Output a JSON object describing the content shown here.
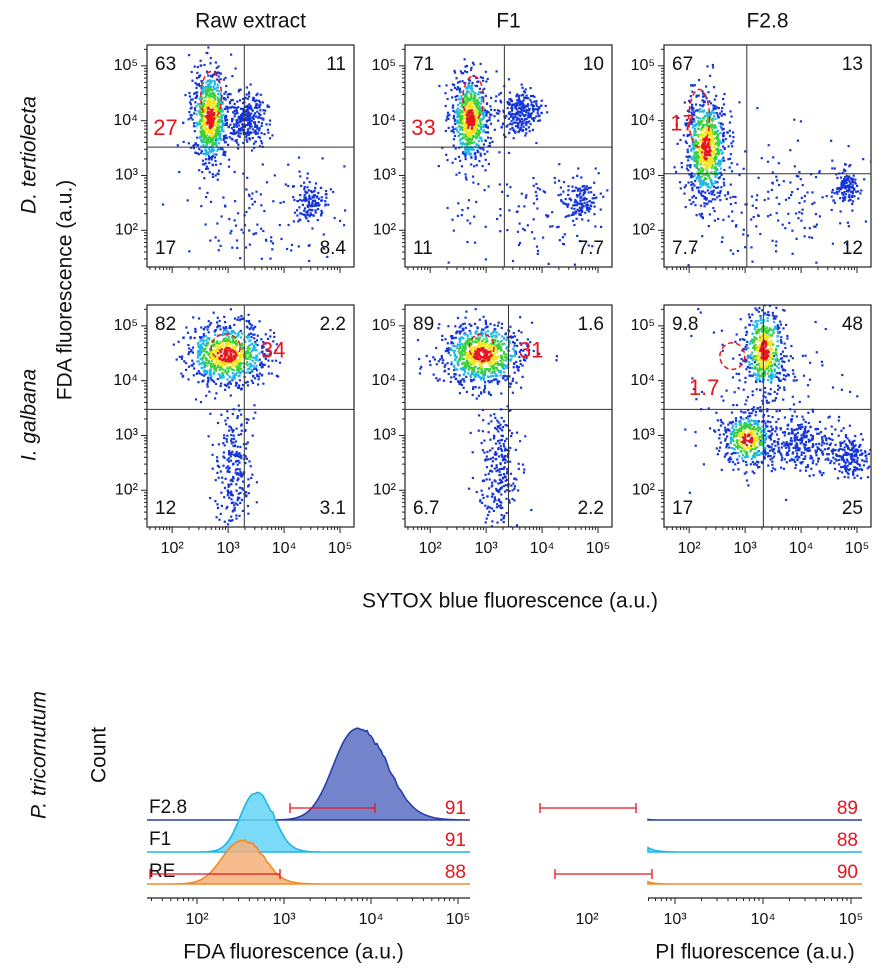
{
  "column_titles": [
    "Raw extract",
    "F1",
    "F2.8"
  ],
  "row_labels": [
    "D. tertiolecta",
    "I. galbana"
  ],
  "scatter_y_label": "FDA fluorescence (a.u.)",
  "scatter_x_label": "SYTOX blue fluorescence (a.u.)",
  "scatter_x_ticks": [
    "10²",
    "10³",
    "10⁴",
    "10⁵"
  ],
  "scatter_y_ticks": [
    "10²",
    "10³",
    "10⁴",
    "10⁵"
  ],
  "panels": [
    [
      {
        "upper_left": "63",
        "upper_right": "11",
        "lower_left": "17",
        "lower_right": "8.4",
        "gated": "27"
      },
      {
        "upper_left": "71",
        "upper_right": "10",
        "lower_left": "11",
        "lower_right": "7.7",
        "gated": "33"
      },
      {
        "upper_left": "67",
        "upper_right": "13",
        "lower_left": "7.7",
        "lower_right": "12",
        "gated": "17"
      }
    ],
    [
      {
        "upper_left": "82",
        "upper_right": "2.2",
        "lower_left": "12",
        "lower_right": "3.1",
        "gated": "34"
      },
      {
        "upper_left": "89",
        "upper_right": "1.6",
        "lower_left": "6.7",
        "lower_right": "2.2",
        "gated": "31"
      },
      {
        "upper_left": "9.8",
        "upper_right": "48",
        "lower_left": "17",
        "lower_right": "25",
        "gated": "1.7"
      }
    ]
  ],
  "histogram": {
    "species": "P. tricornutum",
    "y_label": "Count",
    "samples": [
      "F2.8",
      "F1",
      "RE"
    ],
    "x_ticks": [
      "10²",
      "10³",
      "10⁴",
      "10⁵"
    ],
    "panels": [
      {
        "x_label": "FDA fluorescence (a.u.)",
        "gated": [
          "91",
          "91",
          "88"
        ]
      },
      {
        "x_label": "PI fluorescence (a.u.)",
        "gated": [
          "89",
          "88",
          "90"
        ]
      }
    ]
  }
}
